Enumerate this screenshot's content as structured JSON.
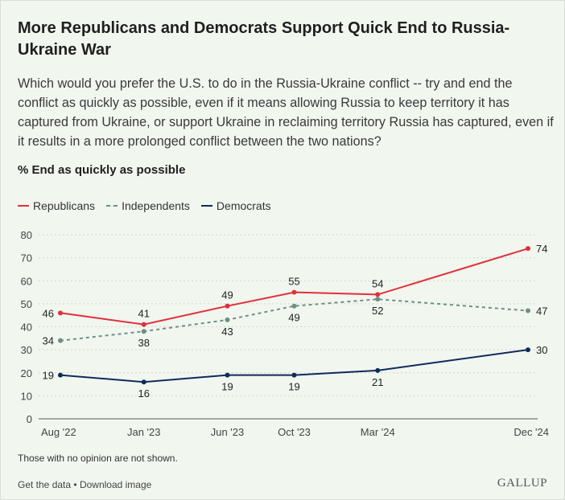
{
  "title": "More Republicans and Democrats Support Quick End to Russia-Ukraine War",
  "subtitle": "Which would you prefer the U.S. to do in the Russia-Ukraine conflict -- try and end the conflict as quickly as possible, even if it means allowing Russia to keep territory it has captured from Ukraine, or support Ukraine in reclaiming territory Russia has captured, even if it results in a more prolonged conflict between the two nations?",
  "measure_label": "% End as quickly as possible",
  "footnote": "Those with no opinion are not shown.",
  "links": {
    "get_data": "Get the data",
    "separator": "•",
    "download": "Download image"
  },
  "brand": "GALLUP",
  "colors": {
    "republicans": "#e0303a",
    "independents": "#6f8f86",
    "democrats": "#0f2b5b"
  },
  "chart_data": {
    "type": "line",
    "x": [
      "Aug '22",
      "Jan '23",
      "Jun '23",
      "Oct '23",
      "Mar '24",
      "Dec '24"
    ],
    "x_dates": [
      "2022-08",
      "2023-01",
      "2023-06",
      "2023-10",
      "2024-03",
      "2024-12"
    ],
    "ylim": [
      0,
      80
    ],
    "yticks": [
      "0",
      "10",
      "20",
      "30",
      "40",
      "50",
      "60",
      "70",
      "80"
    ],
    "grid": true,
    "legend_position": "top-left",
    "series": [
      {
        "name": "Republicans",
        "style": "solid",
        "color": "#e0303a",
        "values": [
          46,
          41,
          49,
          55,
          54,
          74
        ]
      },
      {
        "name": "Independents",
        "style": "dashed",
        "color": "#6f8f86",
        "values": [
          34,
          38,
          43,
          49,
          52,
          47
        ]
      },
      {
        "name": "Democrats",
        "style": "solid",
        "color": "#0f2b5b",
        "values": [
          19,
          16,
          19,
          19,
          21,
          30
        ]
      }
    ]
  }
}
